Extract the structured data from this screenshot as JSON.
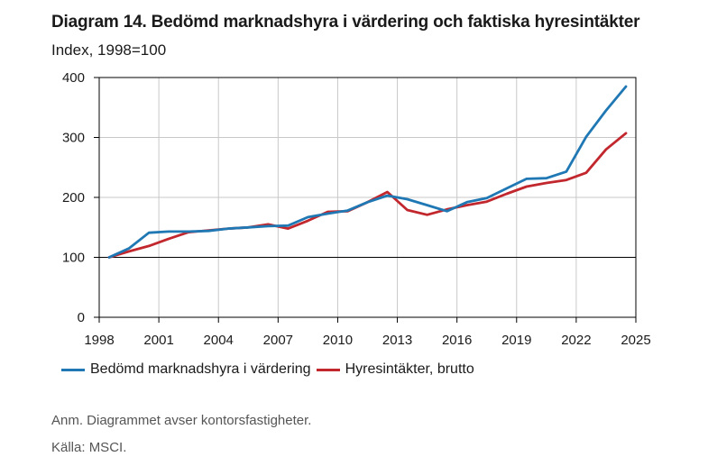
{
  "header": {
    "title": "Diagram 14. Bedömd marknadshyra i värdering och faktiska hyresintäkter",
    "subtitle": "Index, 1998=100"
  },
  "footer": {
    "note": "Anm. Diagrammet avser kontorsfastigheter.",
    "source": "Källa: MSCI."
  },
  "chart_data": {
    "type": "line",
    "title": "Diagram 14. Bedömd marknadshyra i värdering och faktiska hyresintäkter",
    "subtitle": "Index, 1998=100",
    "xlim": [
      1998,
      2025
    ],
    "ylim": [
      0,
      400
    ],
    "x_ticks": [
      "1998",
      "2001",
      "2004",
      "2007",
      "2010",
      "2013",
      "2016",
      "2019",
      "2022",
      "2025"
    ],
    "y_ticks": [
      "0",
      "100",
      "200",
      "300",
      "400"
    ],
    "grid": true,
    "legend": "bottom",
    "x": [
      1998.5,
      1999.5,
      2000.5,
      2001.5,
      2002.5,
      2003.5,
      2004.5,
      2005.5,
      2006.5,
      2007.5,
      2008.5,
      2009.5,
      2010.5,
      2011.5,
      2012.5,
      2013.5,
      2014.5,
      2015.5,
      2016.5,
      2017.5,
      2018.5,
      2019.5,
      2020.5,
      2021.5,
      2022.5,
      2023.5,
      2024.5
    ],
    "series": [
      {
        "name": "Bedömd marknadshyra i värdering",
        "color": "#1f78b4",
        "values": [
          100,
          115,
          141,
          143,
          143,
          144,
          148,
          150,
          152,
          153,
          167,
          173,
          178,
          192,
          203,
          197,
          187,
          177,
          192,
          199,
          215,
          231,
          232,
          243,
          301,
          345,
          385
        ]
      },
      {
        "name": "Hyresintäkter, brutto",
        "color": "#c1272d",
        "values": [
          100,
          110,
          119,
          131,
          142,
          145,
          148,
          150,
          155,
          148,
          161,
          176,
          177,
          192,
          209,
          179,
          171,
          180,
          187,
          193,
          206,
          218,
          224,
          229,
          241,
          280,
          307
        ]
      }
    ]
  }
}
